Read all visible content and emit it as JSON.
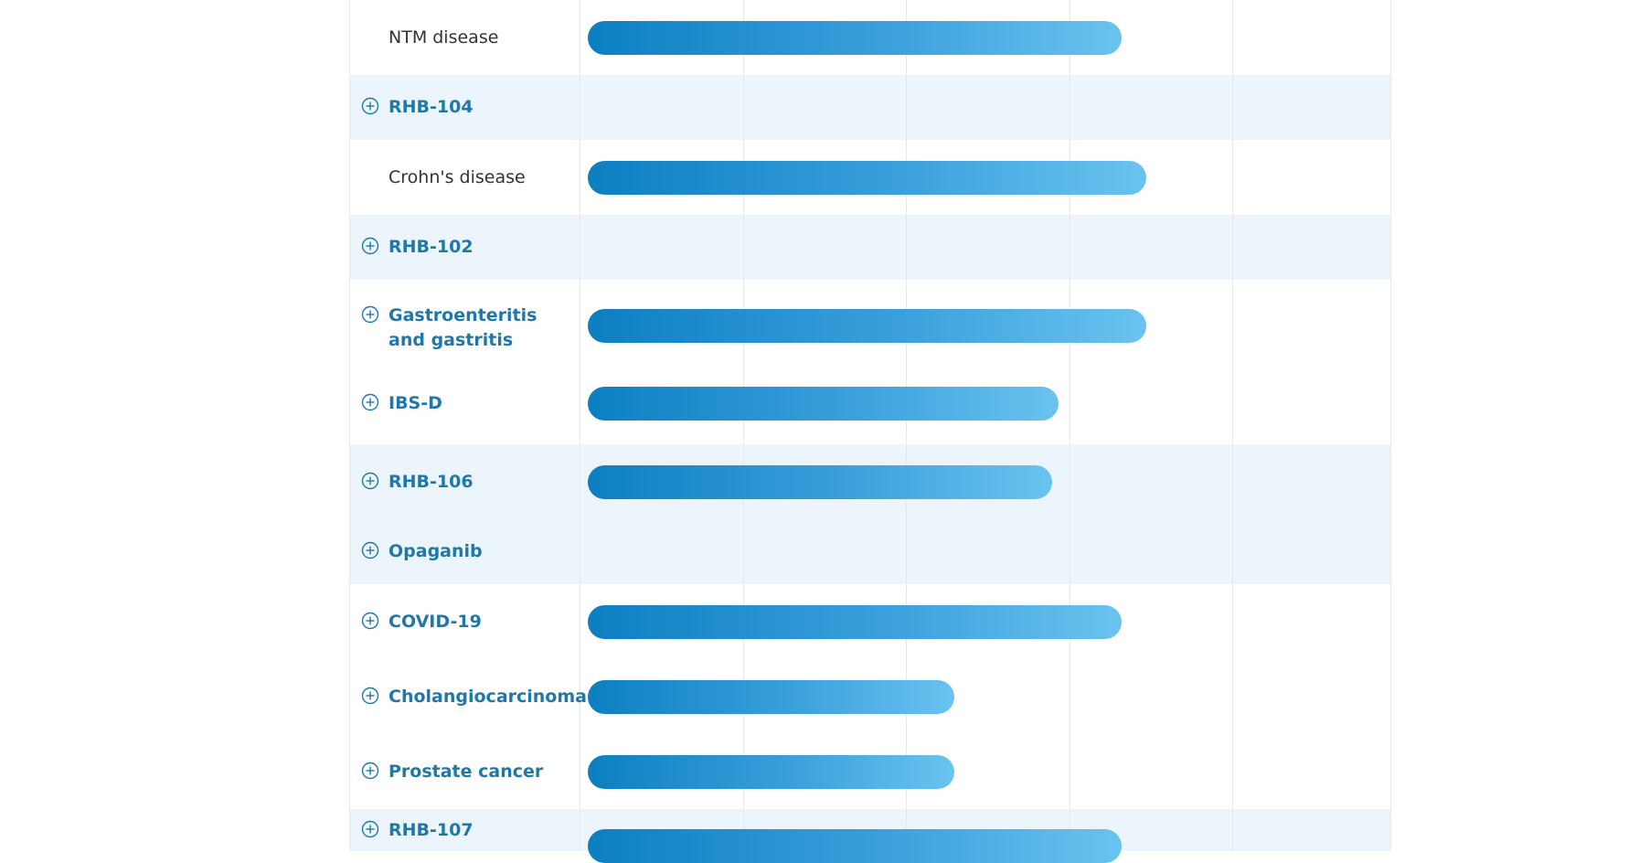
{
  "colors": {
    "label_link": "#1f78a9",
    "label_plain": "#333333",
    "shaded_row": "#ecf5fb",
    "grid": "#e4e9ee",
    "bar_start": "#0c7fc1",
    "bar_end": "#6ac3ef"
  },
  "chart_data": {
    "type": "bar",
    "orientation": "horizontal",
    "grid": true,
    "xlim": [
      0,
      5
    ],
    "rows": [
      {
        "label": "NTM disease",
        "style": "plain",
        "expandable": false,
        "shaded": false,
        "value": 3.33
      },
      {
        "label": "RHB-104",
        "style": "bold",
        "expandable": true,
        "shaded": true,
        "value": null
      },
      {
        "label": "Crohn's disease",
        "style": "plain",
        "expandable": false,
        "shaded": false,
        "value": 3.48
      },
      {
        "label": "RHB-102",
        "style": "bold",
        "expandable": true,
        "shaded": true,
        "value": null
      },
      {
        "label": "Gastroenteritis and gastritis",
        "style": "bold",
        "expandable": true,
        "shaded": false,
        "value": 3.48
      },
      {
        "label": "IBS-D",
        "style": "bold",
        "expandable": true,
        "shaded": false,
        "value": 2.94
      },
      {
        "label": "RHB-106",
        "style": "bold",
        "expandable": true,
        "shaded": true,
        "value": 2.9
      },
      {
        "label": "Opaganib",
        "style": "bold",
        "expandable": true,
        "shaded": true,
        "value": null
      },
      {
        "label": "COVID-19",
        "style": "bold",
        "expandable": true,
        "shaded": false,
        "value": 3.33
      },
      {
        "label": "Cholangiocarcinoma",
        "style": "bold",
        "expandable": true,
        "shaded": false,
        "value": 2.3
      },
      {
        "label": "Prostate cancer",
        "style": "bold",
        "expandable": true,
        "shaded": false,
        "value": 2.3
      },
      {
        "label": "RHB-107",
        "style": "bold",
        "expandable": true,
        "shaded": true,
        "value": 3.33
      }
    ]
  }
}
